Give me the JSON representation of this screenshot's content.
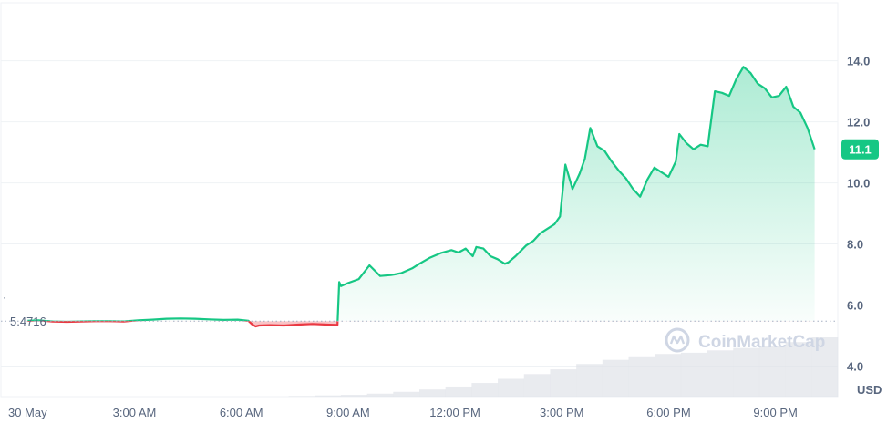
{
  "watermark": {
    "text": "CoinMarketCap",
    "icon": "coinmarketcap-logo-icon"
  },
  "colors": {
    "up": "#16c784",
    "down": "#ea3943",
    "grid": "#eff2f5",
    "axis_text": "#58667e",
    "badge_bg": "#16c784",
    "badge_text": "#ffffff",
    "baseline": "#a6b0c3",
    "volume": "#dfe3e8",
    "watermark": "#cfd6e4"
  },
  "chart_data": {
    "type": "area",
    "x_tick_labels": [
      "30 May",
      "3:00 AM",
      "6:00 AM",
      "9:00 AM",
      "12:00 PM",
      "3:00 PM",
      "6:00 PM",
      "9:00 PM"
    ],
    "x_tick_hours": [
      0,
      3,
      6,
      9,
      12,
      15,
      18,
      21
    ],
    "y_ticks": [
      4.0,
      6.0,
      8.0,
      10.0,
      12.0,
      14.0
    ],
    "y_tick_labels": [
      "4.0",
      "6.0",
      "8.0",
      "10.0",
      "12.0",
      "14.0"
    ],
    "ylim": [
      3.0,
      15.9
    ],
    "xlim_hours": [
      -0.75,
      22.75
    ],
    "grid": true,
    "y_unit_label": "USD",
    "baseline": {
      "value": 5.4716,
      "label": "5.4716"
    },
    "current_value_label": "11.1",
    "current_value": 11.1,
    "series": [
      {
        "x_hours": [
          0,
          0.3,
          0.7,
          1.1,
          1.5,
          1.9,
          2.3,
          2.7,
          3.1,
          3.5,
          3.9,
          4.3,
          4.7,
          5.1,
          5.5,
          5.9,
          6.2,
          6.3,
          6.4,
          6.5,
          6.8,
          7.2,
          7.6,
          8.0,
          8.4,
          8.7,
          8.75,
          8.8,
          9.0,
          9.3,
          9.6,
          9.9,
          10.2,
          10.3,
          10.5,
          10.8,
          11.0,
          11.3,
          11.6,
          11.9,
          12.1,
          12.3,
          12.5,
          12.6,
          12.8,
          13.0,
          13.2,
          13.4,
          13.5,
          13.7,
          14.0,
          14.2,
          14.4,
          14.6,
          14.8,
          14.95,
          15.1,
          15.3,
          15.5,
          15.65,
          15.8,
          16.0,
          16.2,
          16.4,
          16.6,
          16.8,
          17.0,
          17.2,
          17.4,
          17.6,
          17.8,
          18.0,
          18.2,
          18.3,
          18.5,
          18.7,
          18.9,
          19.1,
          19.3,
          19.5,
          19.7,
          19.9,
          20.1,
          20.3,
          20.5,
          20.7,
          20.9,
          21.1,
          21.3,
          21.5,
          21.7,
          21.9,
          22.1
        ],
        "values": [
          5.48,
          5.5,
          5.46,
          5.45,
          5.46,
          5.47,
          5.47,
          5.46,
          5.5,
          5.52,
          5.55,
          5.56,
          5.55,
          5.53,
          5.51,
          5.52,
          5.48,
          5.37,
          5.3,
          5.33,
          5.34,
          5.33,
          5.36,
          5.38,
          5.36,
          5.35,
          6.75,
          6.62,
          6.72,
          6.85,
          7.3,
          6.95,
          6.98,
          7.0,
          7.05,
          7.2,
          7.35,
          7.55,
          7.7,
          7.8,
          7.72,
          7.85,
          7.6,
          7.9,
          7.85,
          7.6,
          7.5,
          7.35,
          7.4,
          7.6,
          7.95,
          8.1,
          8.35,
          8.5,
          8.65,
          8.9,
          10.6,
          9.8,
          10.3,
          10.8,
          11.8,
          11.2,
          11.05,
          10.7,
          10.4,
          10.15,
          9.8,
          9.55,
          10.1,
          10.5,
          10.35,
          10.2,
          10.7,
          11.6,
          11.3,
          11.1,
          11.25,
          11.2,
          13.0,
          12.95,
          12.85,
          13.4,
          13.8,
          13.6,
          13.25,
          13.1,
          12.8,
          12.85,
          13.15,
          12.5,
          12.3,
          11.8,
          11.1
        ]
      }
    ],
    "volume_relative": [
      0.0,
      0.0,
      0.0,
      0.0,
      0.0,
      0.0,
      0.0,
      0.0,
      0.0,
      0.0,
      0.0,
      0.01,
      0.02,
      0.03,
      0.05,
      0.08,
      0.12,
      0.17,
      0.23,
      0.3,
      0.38,
      0.46,
      0.55,
      0.62,
      0.68,
      0.72,
      0.74,
      0.78,
      0.82,
      0.86,
      0.92,
      1.0
    ]
  }
}
